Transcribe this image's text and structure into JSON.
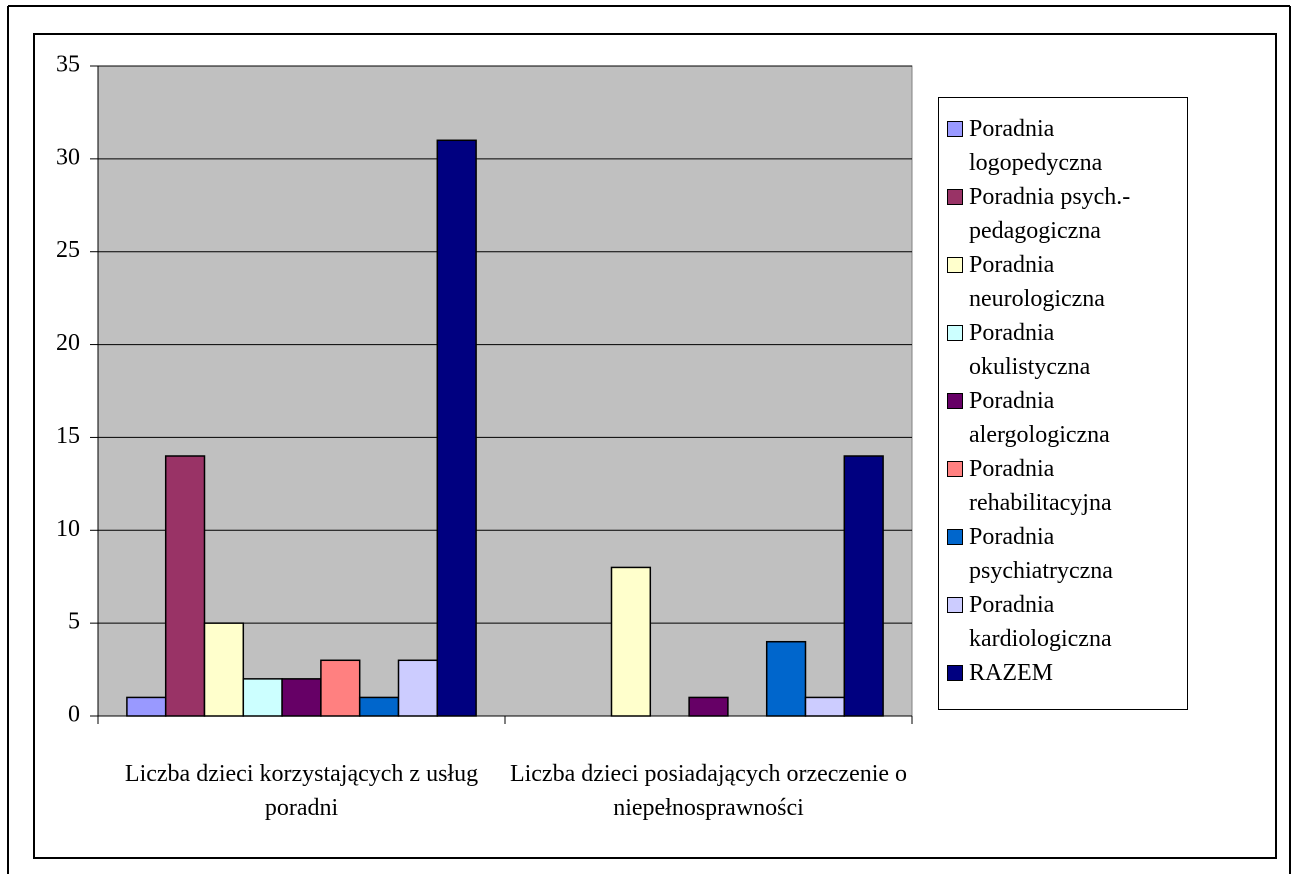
{
  "chart_data": {
    "type": "bar",
    "categories": [
      "Liczba dzieci korzystających z usług poradni",
      "Liczba dzieci posiadających orzeczenie o niepełnosprawności"
    ],
    "series": [
      {
        "name": "Poradnia logopedyczna",
        "color": "#9999ff",
        "values": [
          1,
          0
        ]
      },
      {
        "name": "Poradnia psych.-pedagogiczna",
        "color": "#993366",
        "values": [
          14,
          0
        ]
      },
      {
        "name": "Poradnia neurologiczna",
        "color": "#ffffcc",
        "values": [
          5,
          8
        ]
      },
      {
        "name": "Poradnia okulistyczna",
        "color": "#ccffff",
        "values": [
          2,
          0
        ]
      },
      {
        "name": "Poradnia alergologiczna",
        "color": "#660066",
        "values": [
          2,
          1
        ]
      },
      {
        "name": "Poradnia rehabilitacyjna",
        "color": "#ff8080",
        "values": [
          3,
          0
        ]
      },
      {
        "name": "Poradnia psychiatryczna",
        "color": "#0066cc",
        "values": [
          1,
          4
        ]
      },
      {
        "name": "Poradnia kardiologiczna",
        "color": "#ccccff",
        "values": [
          3,
          1
        ]
      },
      {
        "name": "RAZEM",
        "color": "#000080",
        "values": [
          31,
          14
        ]
      }
    ],
    "ylim": [
      0,
      35
    ],
    "yticks": [
      0,
      5,
      10,
      15,
      20,
      25,
      30,
      35
    ],
    "grid": true,
    "legend": "right"
  }
}
